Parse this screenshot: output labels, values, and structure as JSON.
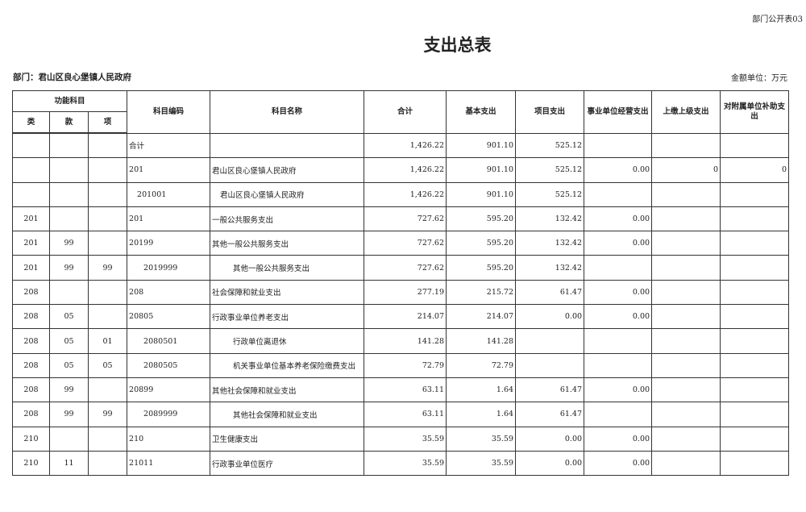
{
  "form_no": "部门公开表03",
  "title": "支出总表",
  "department": "部门：君山区良心堡镇人民政府",
  "unit": "金额单位：万元",
  "headers": {
    "func_subject": "功能科目",
    "lei": "类",
    "kuan": "款",
    "xiang": "项",
    "code": "科目编码",
    "name": "科目名称",
    "total": "合计",
    "basic": "基本支出",
    "project": "项目支出",
    "business": "事业单位经营支出",
    "upper": "上缴上级支出",
    "subsidy": "对附属单位补助支出"
  },
  "rows": [
    {
      "lei": "",
      "kuan": "",
      "xiang": "",
      "code": "合计",
      "name": "",
      "level": 0,
      "total": "1,426.22",
      "basic": "901.10",
      "project": "525.12",
      "business": "",
      "upper": "",
      "subsidy": ""
    },
    {
      "lei": "",
      "kuan": "",
      "xiang": "",
      "code": "201",
      "name": "君山区良心堡镇人民政府",
      "level": 0,
      "total": "1,426.22",
      "basic": "901.10",
      "project": "525.12",
      "business": "0.00",
      "upper": "0",
      "subsidy": "0"
    },
    {
      "lei": "",
      "kuan": "",
      "xiang": "",
      "code": "201001",
      "name": "君山区良心堡镇人民政府",
      "level": 1,
      "total": "1,426.22",
      "basic": "901.10",
      "project": "525.12",
      "business": "",
      "upper": "",
      "subsidy": ""
    },
    {
      "lei": "201",
      "kuan": "",
      "xiang": "",
      "code": "201",
      "name": "一般公共服务支出",
      "level": 0,
      "total": "727.62",
      "basic": "595.20",
      "project": "132.42",
      "business": "0.00",
      "upper": "",
      "subsidy": ""
    },
    {
      "lei": "201",
      "kuan": "99",
      "xiang": "",
      "code": "20199",
      "name": "其他一般公共服务支出",
      "level": 0,
      "total": "727.62",
      "basic": "595.20",
      "project": "132.42",
      "business": "0.00",
      "upper": "",
      "subsidy": ""
    },
    {
      "lei": "201",
      "kuan": "99",
      "xiang": "99",
      "code": "2019999",
      "name": "其他一般公共服务支出",
      "level": 2,
      "total": "727.62",
      "basic": "595.20",
      "project": "132.42",
      "business": "",
      "upper": "",
      "subsidy": ""
    },
    {
      "lei": "208",
      "kuan": "",
      "xiang": "",
      "code": "208",
      "name": "社会保障和就业支出",
      "level": 0,
      "total": "277.19",
      "basic": "215.72",
      "project": "61.47",
      "business": "0.00",
      "upper": "",
      "subsidy": ""
    },
    {
      "lei": "208",
      "kuan": "05",
      "xiang": "",
      "code": "20805",
      "name": "行政事业单位养老支出",
      "level": 0,
      "total": "214.07",
      "basic": "214.07",
      "project": "0.00",
      "business": "0.00",
      "upper": "",
      "subsidy": ""
    },
    {
      "lei": "208",
      "kuan": "05",
      "xiang": "01",
      "code": "2080501",
      "name": "行政单位离退休",
      "level": 2,
      "total": "141.28",
      "basic": "141.28",
      "project": "",
      "business": "",
      "upper": "",
      "subsidy": ""
    },
    {
      "lei": "208",
      "kuan": "05",
      "xiang": "05",
      "code": "2080505",
      "name": "机关事业单位基本养老保险缴费支出",
      "level": 2,
      "total": "72.79",
      "basic": "72.79",
      "project": "",
      "business": "",
      "upper": "",
      "subsidy": ""
    },
    {
      "lei": "208",
      "kuan": "99",
      "xiang": "",
      "code": "20899",
      "name": "其他社会保障和就业支出",
      "level": 0,
      "total": "63.11",
      "basic": "1.64",
      "project": "61.47",
      "business": "0.00",
      "upper": "",
      "subsidy": ""
    },
    {
      "lei": "208",
      "kuan": "99",
      "xiang": "99",
      "code": "2089999",
      "name": "其他社会保障和就业支出",
      "level": 2,
      "total": "63.11",
      "basic": "1.64",
      "project": "61.47",
      "business": "",
      "upper": "",
      "subsidy": ""
    },
    {
      "lei": "210",
      "kuan": "",
      "xiang": "",
      "code": "210",
      "name": "卫生健康支出",
      "level": 0,
      "total": "35.59",
      "basic": "35.59",
      "project": "0.00",
      "business": "0.00",
      "upper": "",
      "subsidy": ""
    },
    {
      "lei": "210",
      "kuan": "11",
      "xiang": "",
      "code": "21011",
      "name": "行政事业单位医疗",
      "level": 0,
      "total": "35.59",
      "basic": "35.59",
      "project": "0.00",
      "business": "0.00",
      "upper": "",
      "subsidy": ""
    }
  ]
}
